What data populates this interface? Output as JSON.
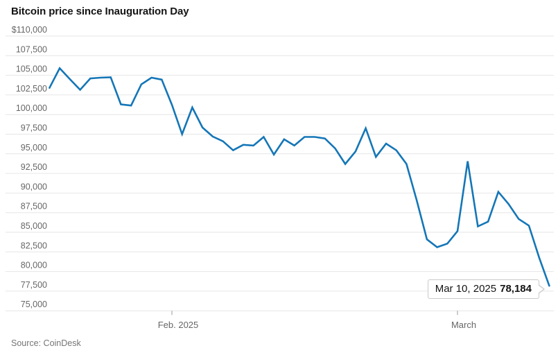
{
  "title": "Bitcoin price since Inauguration Day",
  "source": "Source: CoinDesk",
  "tooltip": {
    "date": "Mar 10, 2025",
    "value": "78,184"
  },
  "colors": {
    "line": "#1476b7",
    "grid": "#e6e6e6",
    "axis_text": "#666666",
    "title_text": "#131313"
  },
  "chart_data": {
    "type": "line",
    "title": "Bitcoin price since Inauguration Day",
    "series_name": "Bitcoin price (USD)",
    "grid": true,
    "ylim": [
      75000,
      110000
    ],
    "y_step": 2500,
    "y_tick_labels": [
      "$110,000",
      "107,500",
      "105,000",
      "102,500",
      "100,000",
      "97,500",
      "95,000",
      "92,500",
      "90,000",
      "87,500",
      "85,000",
      "82,500",
      "80,000",
      "77,500",
      "75,000"
    ],
    "x_ticks": [
      {
        "label": "Feb. 2025",
        "x_index": 12
      },
      {
        "label": "March",
        "x_index": 40
      }
    ],
    "x": [
      "Jan 20",
      "Jan 21",
      "Jan 22",
      "Jan 23",
      "Jan 24",
      "Jan 25",
      "Jan 26",
      "Jan 27",
      "Jan 28",
      "Jan 29",
      "Jan 30",
      "Jan 31",
      "Feb 1",
      "Feb 2",
      "Feb 3",
      "Feb 4",
      "Feb 5",
      "Feb 6",
      "Feb 7",
      "Feb 8",
      "Feb 9",
      "Feb 10",
      "Feb 11",
      "Feb 12",
      "Feb 13",
      "Feb 14",
      "Feb 15",
      "Feb 16",
      "Feb 17",
      "Feb 18",
      "Feb 19",
      "Feb 20",
      "Feb 21",
      "Feb 22",
      "Feb 23",
      "Feb 24",
      "Feb 25",
      "Feb 26",
      "Feb 27",
      "Feb 28",
      "Mar 1",
      "Mar 2",
      "Mar 3",
      "Mar 4",
      "Mar 5",
      "Mar 6",
      "Mar 7",
      "Mar 8",
      "Mar 9",
      "Mar 10"
    ],
    "values": [
      103400,
      105900,
      104500,
      103150,
      104600,
      104700,
      104750,
      101300,
      101150,
      103850,
      104700,
      104450,
      101250,
      97500,
      100900,
      98350,
      97200,
      96600,
      95450,
      96150,
      96050,
      97150,
      94900,
      96850,
      96050,
      97150,
      97150,
      96950,
      95700,
      93700,
      95300,
      98250,
      94600,
      96300,
      95450,
      93700,
      89100,
      84100,
      83100,
      83550,
      85150,
      94050,
      85750,
      86350,
      90150,
      88600,
      86700,
      85850,
      81800,
      78184
    ],
    "annotation": {
      "label": "Mar 10, 2025 78,184",
      "x_index": 49,
      "value": 78184
    }
  }
}
